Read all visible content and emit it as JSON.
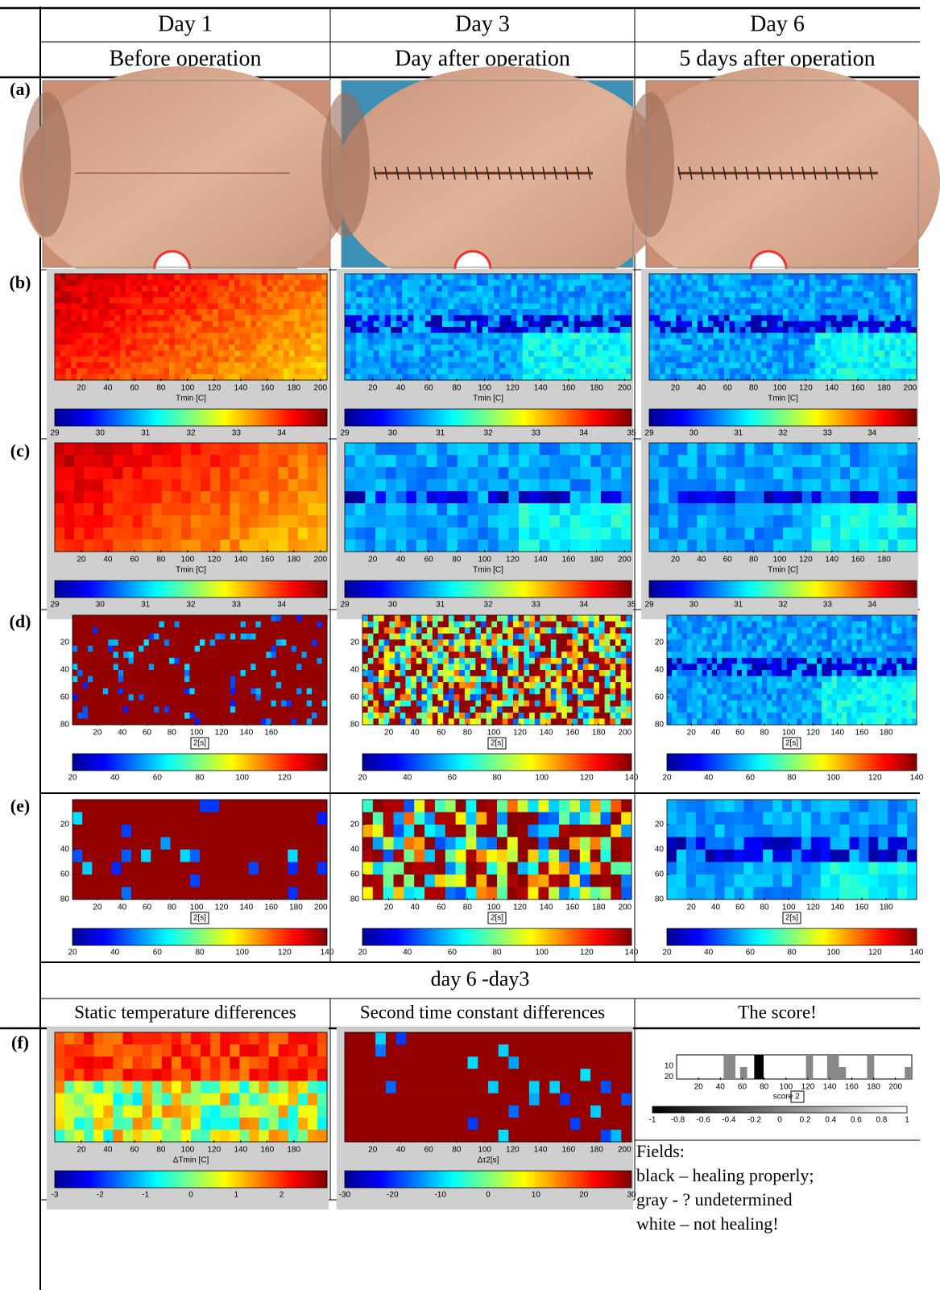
{
  "header": {
    "columns": [
      {
        "day": "Day 1",
        "stage": "Before operation"
      },
      {
        "day": "Day 3",
        "stage": "Day after operation"
      },
      {
        "day": "Day 6",
        "stage": "5 days after operation"
      }
    ],
    "row_labels": [
      "(a)",
      "(b)",
      "(c)",
      "(d)",
      "(e)",
      "(f)"
    ]
  },
  "panels": {
    "b": [
      {
        "xticks": [
          20,
          40,
          60,
          80,
          100,
          120,
          140,
          160,
          180,
          200
        ],
        "xlabel": "Tmin [C]",
        "cbar": [
          29,
          30,
          31,
          32,
          33,
          34
        ]
      },
      {
        "xticks": [
          20,
          40,
          60,
          80,
          100,
          120,
          140,
          160,
          180,
          200
        ],
        "xlabel": "Tmin [C]",
        "cbar": [
          29,
          30,
          31,
          32,
          33,
          34,
          35
        ]
      },
      {
        "xticks": [
          20,
          40,
          60,
          80,
          100,
          120,
          140,
          160,
          180,
          200
        ],
        "xlabel": "Tmin [C]",
        "cbar": [
          29,
          30,
          31,
          32,
          33,
          34
        ]
      }
    ],
    "c": [
      {
        "xticks": [
          20,
          40,
          60,
          80,
          100,
          120,
          140,
          160,
          180,
          200
        ],
        "xlabel": "Tmin [C]",
        "cbar": [
          29,
          30,
          31,
          32,
          33,
          34
        ]
      },
      {
        "xticks": [
          20,
          40,
          60,
          80,
          100,
          120,
          140,
          160,
          180,
          200
        ],
        "xlabel": "Tmin [C]",
        "cbar": [
          29,
          30,
          31,
          32,
          33,
          34,
          35
        ]
      },
      {
        "xticks": [
          20,
          40,
          60,
          80,
          100,
          120,
          140,
          160,
          180
        ],
        "xlabel": "Tmin [C]",
        "cbar": [
          29,
          30,
          31,
          32,
          33,
          34
        ]
      }
    ],
    "d": [
      {
        "yticks": [
          20,
          40,
          60,
          80
        ],
        "xticks": [
          20,
          40,
          60,
          80,
          100,
          120,
          140,
          160
        ],
        "xlabel": "2[s]",
        "cbar": [
          20,
          40,
          60,
          80,
          100,
          120
        ]
      },
      {
        "yticks": [
          20,
          40,
          60,
          80
        ],
        "xticks": [
          20,
          40,
          60,
          80,
          100,
          120,
          140,
          160,
          180,
          200
        ],
        "xlabel": "2[s]",
        "cbar": [
          20,
          40,
          60,
          80,
          100,
          120,
          140
        ]
      },
      {
        "yticks": [
          20,
          40,
          60,
          80
        ],
        "xticks": [
          20,
          40,
          60,
          80,
          100,
          120,
          140,
          160,
          180
        ],
        "xlabel": "2[s]",
        "cbar": [
          20,
          40,
          60,
          80,
          100,
          120,
          140
        ]
      }
    ],
    "e": [
      {
        "yticks": [
          20,
          40,
          60,
          80
        ],
        "xticks": [
          20,
          40,
          60,
          80,
          100,
          120,
          140,
          160,
          180,
          200
        ],
        "xlabel": "2[s]",
        "cbar": [
          20,
          40,
          60,
          80,
          100,
          120,
          140
        ]
      },
      {
        "yticks": [
          20,
          40,
          60,
          80
        ],
        "xticks": [
          20,
          40,
          60,
          80,
          100,
          120,
          140,
          160,
          180,
          200
        ],
        "xlabel": "2[s]",
        "cbar": [
          20,
          40,
          60,
          80,
          100,
          120,
          140
        ]
      },
      {
        "yticks": [
          20,
          40,
          60,
          80
        ],
        "xticks": [
          20,
          40,
          60,
          80,
          100,
          120,
          140,
          160,
          180
        ],
        "xlabel": "2[s]",
        "cbar": [
          20,
          40,
          60,
          80,
          100,
          120,
          140
        ]
      }
    ],
    "f": [
      {
        "xticks": [
          20,
          40,
          60,
          80,
          100,
          120,
          140,
          160,
          180
        ],
        "xlabel": "ΔTmin [C]",
        "cbar": [
          -3,
          -2,
          -1,
          0,
          1,
          2
        ]
      },
      {
        "xticks": [
          20,
          40,
          60,
          80,
          100,
          120,
          140,
          160,
          180,
          200
        ],
        "xlabel": "Δτ2[s]",
        "cbar": [
          -30,
          -20,
          -10,
          0,
          10,
          20,
          30
        ]
      }
    ]
  },
  "section": {
    "title": "day 6 -day3",
    "columns": [
      "Static temperature differences",
      "Second time constant differences",
      "The score!"
    ]
  },
  "score": {
    "yticks": [
      10,
      20
    ],
    "xticks": [
      20,
      40,
      60,
      80,
      100,
      120,
      140,
      160,
      180,
      200
    ],
    "xlabel": "score",
    "xlabel_box": "2",
    "cbar": [
      -1,
      -0.8,
      -0.6,
      -0.4,
      -0.2,
      0,
      0.2,
      0.4,
      0.6,
      0.8,
      1
    ]
  },
  "legend": [
    "Fields:",
    "black – healing properly;",
    "gray - ? undetermined",
    "white – not healing!"
  ]
}
